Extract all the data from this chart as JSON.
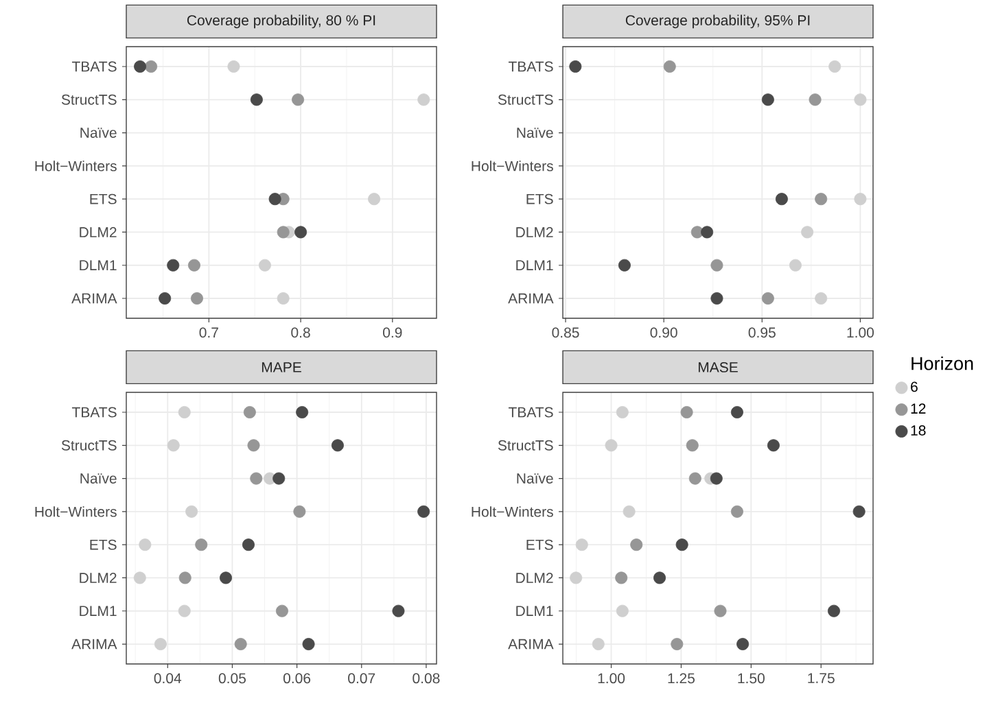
{
  "chart_data": [
    {
      "type": "scatter",
      "orientation": "horizontal",
      "title": "Coverage probability, 80 % PI",
      "categories": [
        "TBATS",
        "StructTS",
        "Naïve",
        "Holt−Winters",
        "ETS",
        "DLM2",
        "DLM1",
        "ARIMA"
      ],
      "series": [
        {
          "color": "#cfcfcf",
          "values": [
            0.727,
            0.934,
            null,
            null,
            0.88,
            0.787,
            0.761,
            0.781
          ]
        },
        {
          "color": "#969696",
          "values": [
            0.637,
            0.797,
            null,
            null,
            0.781,
            0.781,
            0.684,
            0.687
          ]
        },
        {
          "color": "#4a4a4a",
          "values": [
            0.625,
            0.752,
            null,
            null,
            0.772,
            0.8,
            0.661,
            0.652
          ]
        }
      ],
      "xlim": [
        0.61,
        0.948
      ],
      "xticks": [
        0.7,
        0.8,
        0.9
      ],
      "grid": true,
      "marker": "circle"
    },
    {
      "type": "scatter",
      "orientation": "horizontal",
      "title": "Coverage probability, 95% PI",
      "categories": [
        "TBATS",
        "StructTS",
        "Naïve",
        "Holt−Winters",
        "ETS",
        "DLM2",
        "DLM1",
        "ARIMA"
      ],
      "series": [
        {
          "name": "6",
          "color": "#cfcfcf",
          "values": [
            0.987,
            1.0,
            null,
            null,
            1.0,
            0.973,
            0.967,
            0.98
          ]
        },
        {
          "name": "12",
          "color": "#969696",
          "values": [
            0.903,
            0.977,
            null,
            null,
            0.98,
            0.917,
            0.927,
            0.953
          ]
        },
        {
          "name": "18",
          "color": "#4a4a4a",
          "values": [
            0.855,
            0.953,
            null,
            null,
            0.96,
            0.922,
            0.88,
            0.927
          ]
        }
      ],
      "xlim": [
        0.8486,
        1.0065
      ],
      "xticks": [
        0.85,
        {
          "value": 0.9,
          "label": "0.90"
        },
        0.95,
        {
          "value": 1.0,
          "label": "1.00"
        }
      ],
      "grid": true,
      "marker": "circle",
      "legend": "right",
      "legend_title": "Horizon"
    },
    {
      "type": "scatter",
      "orientation": "horizontal",
      "title": "MAPE",
      "categories": [
        "TBATS",
        "StructTS",
        "Naïve",
        "Holt−Winters",
        "ETS",
        "DLM2",
        "DLM1",
        "ARIMA"
      ],
      "series": [
        {
          "color": "#cfcfcf",
          "values": [
            0.0426,
            0.0409,
            0.0558,
            0.0437,
            0.0365,
            0.0357,
            0.0426,
            0.0389
          ]
        },
        {
          "color": "#969696",
          "values": [
            0.0527,
            0.0533,
            0.0537,
            0.0604,
            0.0452,
            0.0427,
            0.0577,
            0.0513
          ]
        },
        {
          "color": "#4a4a4a",
          "values": [
            0.0608,
            0.0663,
            0.0572,
            0.0796,
            0.0525,
            0.049,
            0.0757,
            0.0618
          ]
        }
      ],
      "xlim": [
        0.0336,
        0.0816
      ],
      "xticks": [
        0.04,
        0.05,
        0.06,
        0.07,
        0.08
      ],
      "grid": true,
      "marker": "circle"
    },
    {
      "type": "scatter",
      "orientation": "horizontal",
      "title": "MASE",
      "categories": [
        "TBATS",
        "StructTS",
        "Naïve",
        "Holt−Winters",
        "ETS",
        "DLM2",
        "DLM1",
        "ARIMA"
      ],
      "series": [
        {
          "color": "#cfcfcf",
          "values": [
            1.04,
            1.0,
            1.355,
            1.064,
            0.895,
            0.874,
            1.04,
            0.954
          ]
        },
        {
          "color": "#969696",
          "values": [
            1.27,
            1.29,
            1.3,
            1.45,
            1.09,
            1.036,
            1.39,
            1.235
          ]
        },
        {
          "color": "#4a4a4a",
          "values": [
            1.45,
            1.58,
            1.376,
            1.886,
            1.253,
            1.173,
            1.796,
            1.47
          ]
        }
      ],
      "xlim": [
        0.827,
        1.936
      ],
      "xticks": [
        {
          "value": 1.0,
          "label": "1.00"
        },
        1.25,
        {
          "value": 1.5,
          "label": "1.50"
        },
        1.75
      ],
      "grid": true,
      "marker": "circle"
    }
  ]
}
